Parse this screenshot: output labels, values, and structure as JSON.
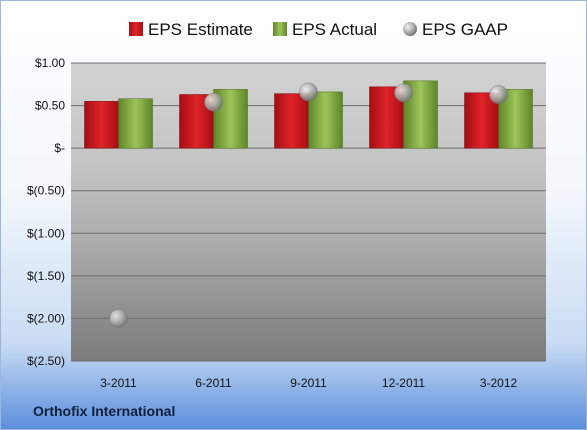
{
  "chart_data": {
    "type": "bar",
    "categories": [
      "3-2011",
      "6-2011",
      "9-2011",
      "12-2011",
      "3-2012"
    ],
    "series": [
      {
        "name": "EPS Estimate",
        "kind": "bar",
        "color": "#c8161d",
        "values": [
          0.55,
          0.63,
          0.64,
          0.72,
          0.65
        ]
      },
      {
        "name": "EPS Actual",
        "kind": "bar",
        "color": "#7aa13b",
        "values": [
          0.58,
          0.69,
          0.66,
          0.79,
          0.69
        ]
      },
      {
        "name": "EPS GAAP",
        "kind": "marker",
        "color": "#a8a8a8",
        "values": [
          -2.0,
          0.54,
          0.66,
          0.65,
          0.63
        ]
      }
    ],
    "yticks": [
      "$1.00",
      "$0.50",
      "$-",
      "$(0.50)",
      "$(1.00)",
      "$(1.50)",
      "$(2.00)",
      "$(2.50)"
    ],
    "ytick_values": [
      1.0,
      0.5,
      0.0,
      -0.5,
      -1.0,
      -1.5,
      -2.0,
      -2.5
    ],
    "ylim": [
      -2.5,
      1.0
    ],
    "grid": true,
    "legend": "top"
  },
  "footer": {
    "company": "Orthofix International"
  }
}
